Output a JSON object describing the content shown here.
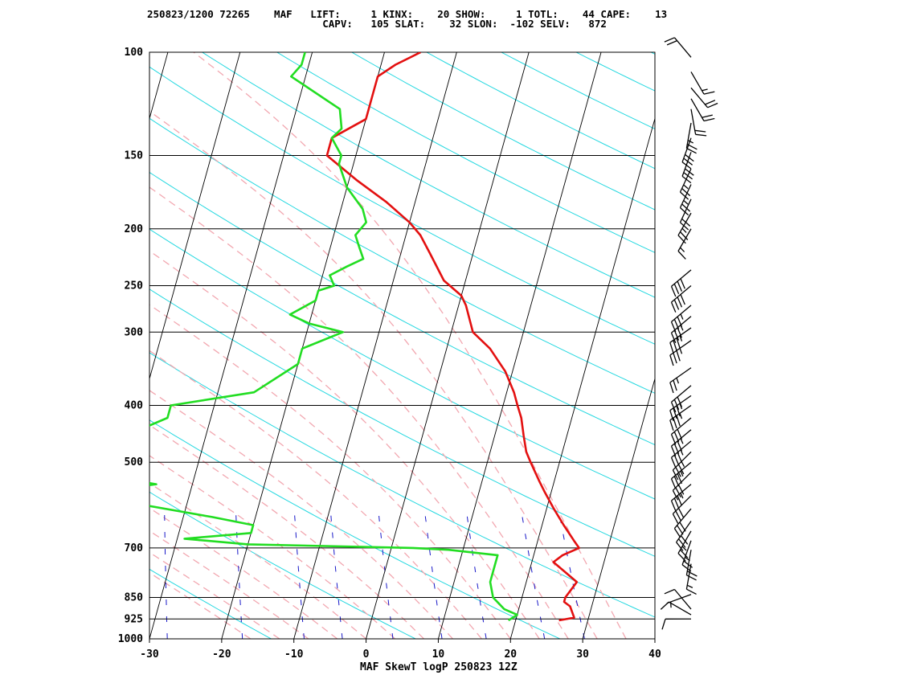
{
  "header": {
    "line1": "250823/1200 72265    MAF   LIFT:     1 KINX:    20 SHOW:     1 TOTL:    44 CAPE:    13",
    "line2": "                             CAPV:   105 SLAT:    32 SLON:  -102 SELV:   872"
  },
  "footer": {
    "title": "MAF SkewT logP 250823 12Z"
  },
  "colors": {
    "temperature": "#e31010",
    "dewpoint": "#22dd22",
    "isobar": "#000000",
    "isotherm": "#000000",
    "dry_adiabat": "#25d8e0",
    "moist_adiabat": "#f2a7b0",
    "mixing_ratio": "#1818c8",
    "wind_barb": "#000000"
  },
  "chart_data": {
    "type": "line",
    "title": "",
    "xlabel": "",
    "ylabel": "",
    "x_scale": "skewT",
    "y_scale": "log",
    "xlim": [
      -30,
      40
    ],
    "ylim": [
      1000,
      100
    ],
    "pressure_ticks": [
      "100",
      "150",
      "200",
      "250",
      "300",
      "400",
      "500",
      "700",
      "850",
      "925",
      "1000"
    ],
    "pressure_levels": [
      100,
      150,
      200,
      250,
      300,
      400,
      500,
      700,
      850,
      925,
      1000
    ],
    "temperature_ticks": [
      "-30",
      "-20",
      "-10",
      "0",
      "10",
      "20",
      "30",
      "40"
    ],
    "temperature_tick_values": [
      -30,
      -20,
      -10,
      0,
      10,
      20,
      30,
      40
    ],
    "grid": true,
    "series": [
      {
        "key": "temperature",
        "points": [
          [
            930,
            26
          ],
          [
            920,
            28
          ],
          [
            880,
            27
          ],
          [
            865,
            26
          ],
          [
            850,
            26
          ],
          [
            800,
            27
          ],
          [
            740,
            23
          ],
          [
            720,
            24
          ],
          [
            700,
            26
          ],
          [
            680,
            25
          ],
          [
            640,
            23
          ],
          [
            600,
            21
          ],
          [
            560,
            19
          ],
          [
            540,
            18
          ],
          [
            500,
            16
          ],
          [
            480,
            15
          ],
          [
            450,
            14
          ],
          [
            420,
            13
          ],
          [
            400,
            12
          ],
          [
            380,
            11
          ],
          [
            350,
            9
          ],
          [
            320,
            6
          ],
          [
            300,
            3
          ],
          [
            270,
            1
          ],
          [
            260,
            0
          ],
          [
            245,
            -3
          ],
          [
            220,
            -6
          ],
          [
            205,
            -8
          ],
          [
            195,
            -10
          ],
          [
            180,
            -14
          ],
          [
            165,
            -19
          ],
          [
            150,
            -24
          ],
          [
            140,
            -24
          ],
          [
            130,
            -20
          ],
          [
            120,
            -20
          ],
          [
            110,
            -20
          ],
          [
            105,
            -18
          ],
          [
            100,
            -15
          ]
        ]
      },
      {
        "key": "dewpoint",
        "points": [
          [
            930,
            19
          ],
          [
            910,
            20
          ],
          [
            890,
            18
          ],
          [
            870,
            17
          ],
          [
            850,
            16
          ],
          [
            800,
            15
          ],
          [
            760,
            15
          ],
          [
            720,
            15
          ],
          [
            705,
            8
          ],
          [
            700,
            3
          ],
          [
            690,
            -20
          ],
          [
            675,
            -29
          ],
          [
            660,
            -20
          ],
          [
            640,
            -20
          ],
          [
            620,
            -26
          ],
          [
            580,
            -40
          ],
          [
            555,
            -40
          ],
          [
            545,
            -35
          ],
          [
            535,
            -39
          ],
          [
            510,
            -44
          ],
          [
            495,
            -45
          ],
          [
            480,
            -44
          ],
          [
            450,
            -41
          ],
          [
            420,
            -36
          ],
          [
            400,
            -36
          ],
          [
            380,
            -25
          ],
          [
            340,
            -20
          ],
          [
            320,
            -20
          ],
          [
            300,
            -15
          ],
          [
            290,
            -20
          ],
          [
            280,
            -23
          ],
          [
            265,
            -20
          ],
          [
            255,
            -20
          ],
          [
            250,
            -18
          ],
          [
            240,
            -19
          ],
          [
            232,
            -17
          ],
          [
            225,
            -15
          ],
          [
            215,
            -16
          ],
          [
            205,
            -17
          ],
          [
            195,
            -16
          ],
          [
            185,
            -17
          ],
          [
            170,
            -20
          ],
          [
            155,
            -22
          ],
          [
            150,
            -22
          ],
          [
            140,
            -24
          ],
          [
            135,
            -23
          ],
          [
            125,
            -24
          ],
          [
            110,
            -32
          ],
          [
            105,
            -31
          ],
          [
            100,
            -31
          ]
        ]
      }
    ],
    "wind_barbs": [
      {
        "p": 925,
        "dir": 270,
        "kt": 10
      },
      {
        "p": 910,
        "dir": 300,
        "kt": 10
      },
      {
        "p": 890,
        "dir": 320,
        "kt": 10
      },
      {
        "p": 840,
        "dir": 250,
        "kt": 5
      },
      {
        "p": 745,
        "dir": 190,
        "kt": 15
      },
      {
        "p": 705,
        "dir": 190,
        "kt": 20
      },
      {
        "p": 680,
        "dir": 200,
        "kt": 25
      },
      {
        "p": 655,
        "dir": 210,
        "kt": 25
      },
      {
        "p": 630,
        "dir": 215,
        "kt": 30
      },
      {
        "p": 600,
        "dir": 220,
        "kt": 30
      },
      {
        "p": 570,
        "dir": 225,
        "kt": 30
      },
      {
        "p": 545,
        "dir": 230,
        "kt": 35
      },
      {
        "p": 520,
        "dir": 225,
        "kt": 30
      },
      {
        "p": 500,
        "dir": 230,
        "kt": 35
      },
      {
        "p": 480,
        "dir": 225,
        "kt": 35
      },
      {
        "p": 460,
        "dir": 230,
        "kt": 35
      },
      {
        "p": 440,
        "dir": 230,
        "kt": 35
      },
      {
        "p": 420,
        "dir": 230,
        "kt": 30
      },
      {
        "p": 400,
        "dir": 235,
        "kt": 35
      },
      {
        "p": 385,
        "dir": 235,
        "kt": 35
      },
      {
        "p": 370,
        "dir": 230,
        "kt": 30
      },
      {
        "p": 345,
        "dir": 235,
        "kt": 25
      },
      {
        "p": 310,
        "dir": 235,
        "kt": 35
      },
      {
        "p": 295,
        "dir": 235,
        "kt": 35
      },
      {
        "p": 282,
        "dir": 230,
        "kt": 35
      },
      {
        "p": 270,
        "dir": 230,
        "kt": 35
      },
      {
        "p": 250,
        "dir": 230,
        "kt": 40
      },
      {
        "p": 235,
        "dir": 230,
        "kt": 40
      },
      {
        "p": 200,
        "dir": 210,
        "kt": 15
      },
      {
        "p": 188,
        "dir": 210,
        "kt": 25
      },
      {
        "p": 178,
        "dir": 205,
        "kt": 20
      },
      {
        "p": 168,
        "dir": 205,
        "kt": 25
      },
      {
        "p": 158,
        "dir": 205,
        "kt": 25
      },
      {
        "p": 148,
        "dir": 200,
        "kt": 30
      },
      {
        "p": 140,
        "dir": 200,
        "kt": 30
      },
      {
        "p": 132,
        "dir": 190,
        "kt": 25
      },
      {
        "p": 125,
        "dir": 170,
        "kt": 20
      },
      {
        "p": 120,
        "dir": 150,
        "kt": 20
      },
      {
        "p": 115,
        "dir": 140,
        "kt": 20
      },
      {
        "p": 108,
        "dir": 150,
        "kt": 15
      },
      {
        "p": 102,
        "dir": 320,
        "kt": 20
      }
    ]
  }
}
